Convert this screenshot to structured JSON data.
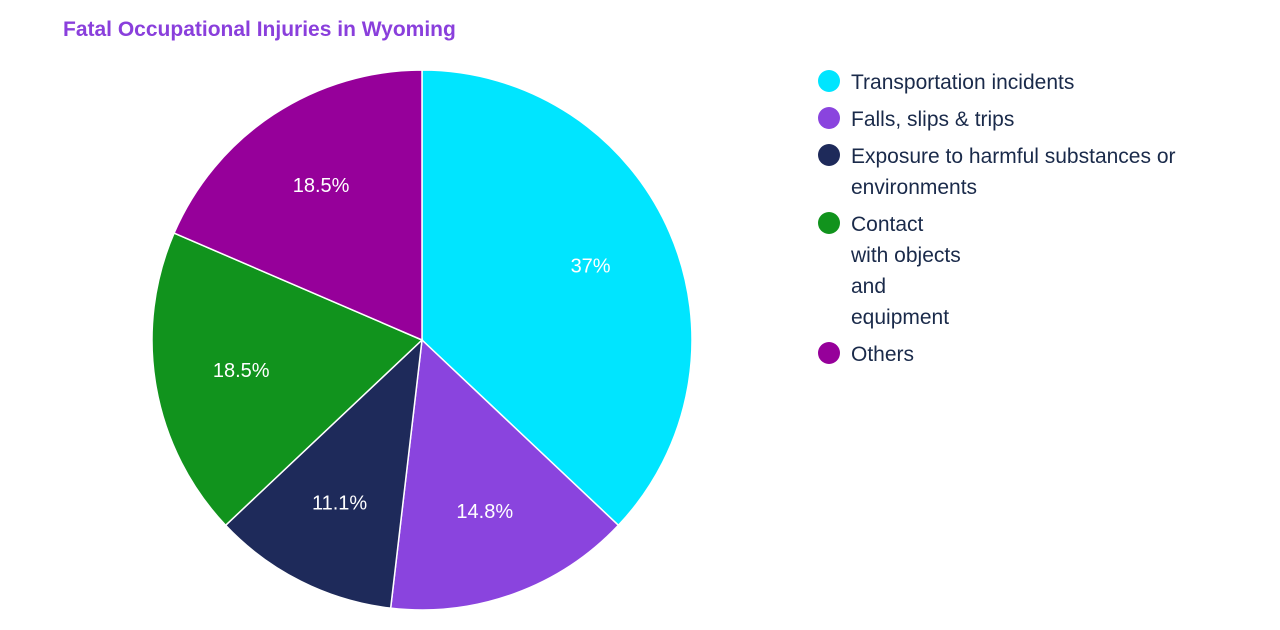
{
  "chart_data": {
    "type": "pie",
    "title": "Fatal Occupational Injuries in Wyoming",
    "legend_position": "right",
    "slices": [
      {
        "label": "Transportation incidents",
        "value": 37,
        "display": "37%",
        "color": "#00e5ff"
      },
      {
        "label": "Falls, slips & trips",
        "value": 14.8,
        "display": "14.8%",
        "color": "#8a44de"
      },
      {
        "label": "Exposure to harmful substances or\nenvironments",
        "value": 11.1,
        "display": "11.1%",
        "color": "#1e2a5a"
      },
      {
        "label": "Contact\nwith objects\nand\nequipment",
        "value": 18.5,
        "display": "18.5%",
        "color": "#11931d"
      },
      {
        "label": "Others",
        "value": 18.5,
        "display": "18.5%",
        "color": "#96009a"
      }
    ]
  }
}
